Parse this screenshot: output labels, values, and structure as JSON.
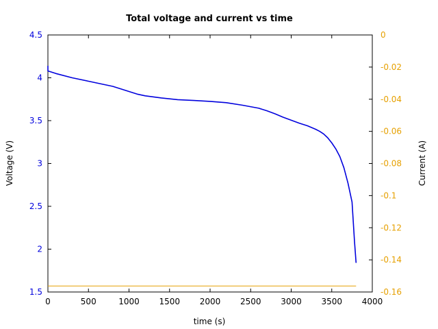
{
  "chart_data": {
    "type": "line",
    "title": "Total voltage and current vs time",
    "xlabel": "time (s)",
    "ylabel_left": "Voltage (V)",
    "ylabel_right": "Current (A)",
    "xlim": [
      0,
      4000
    ],
    "ylim_left": [
      1.5,
      4.5
    ],
    "ylim_right": [
      -0.16,
      0
    ],
    "x_ticks": [
      0,
      500,
      1000,
      1500,
      2000,
      2500,
      3000,
      3500,
      4000
    ],
    "x_tick_labels": [
      "0",
      "500",
      "1000",
      "1500",
      "2000",
      "2500",
      "3000",
      "3500",
      "4000"
    ],
    "y_left_ticks": [
      1.5,
      2,
      2.5,
      3,
      3.5,
      4,
      4.5
    ],
    "y_left_tick_labels": [
      "1.5",
      "2",
      "2.5",
      "3",
      "3.5",
      "4",
      "4.5"
    ],
    "y_right_ticks": [
      0,
      -0.02,
      -0.04,
      -0.06,
      -0.08,
      -0.1,
      -0.12,
      -0.14,
      -0.16
    ],
    "y_right_tick_labels": [
      "0",
      "-0.02",
      "-0.04",
      "-0.06",
      "-0.08",
      "-0.1",
      "-0.12",
      "-0.14",
      "-0.16"
    ],
    "grid": false,
    "colors": {
      "voltage": "#0000dd",
      "current": "#e6a000",
      "left_axis": "#0000dd",
      "right_axis": "#e6a000"
    },
    "series": [
      {
        "axis": "left",
        "x": [
          0,
          0,
          0,
          100,
          300,
          500,
          700,
          800,
          900,
          1000,
          1100,
          1200,
          1400,
          1600,
          1800,
          2000,
          2200,
          2400,
          2600,
          2700,
          2800,
          2900,
          3000,
          3100,
          3200,
          3300,
          3350,
          3400,
          3450,
          3500,
          3550,
          3600,
          3650,
          3700,
          3750,
          3780,
          3800
        ],
        "y": [
          4.14,
          4.12,
          4.08,
          4.05,
          4.0,
          3.96,
          3.92,
          3.9,
          3.87,
          3.84,
          3.81,
          3.79,
          3.765,
          3.745,
          3.735,
          3.725,
          3.71,
          3.68,
          3.645,
          3.615,
          3.58,
          3.54,
          3.505,
          3.47,
          3.44,
          3.4,
          3.375,
          3.345,
          3.3,
          3.24,
          3.17,
          3.08,
          2.95,
          2.77,
          2.55,
          2.1,
          1.84
        ]
      },
      {
        "axis": "right",
        "x": [
          0,
          3800
        ],
        "y": [
          -0.1563,
          -0.1563
        ]
      }
    ]
  }
}
